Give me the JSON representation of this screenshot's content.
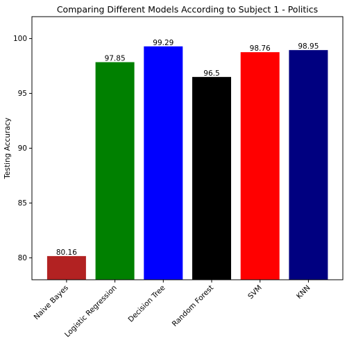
{
  "chart_data": {
    "type": "bar",
    "title": "Comparing Different Models According to Subject 1  - Politics",
    "xlabel": "",
    "ylabel": "Testing Accuracy",
    "ylim": [
      78,
      102
    ],
    "yticks": [
      80,
      85,
      90,
      95,
      100
    ],
    "ytick_labels": [
      "80",
      "85",
      "90",
      "95",
      "100"
    ],
    "grid": false,
    "categories": [
      "Naive Bayes",
      "Logistic Regression",
      "Decision Tree",
      "Random Forest",
      "SVM",
      "KNN"
    ],
    "values": [
      80.16,
      97.85,
      99.29,
      96.5,
      98.76,
      98.95
    ],
    "value_labels": [
      "80.16",
      "97.85",
      "99.29",
      "96.5",
      "98.76",
      "98.95"
    ],
    "colors": [
      "#b22222",
      "#008000",
      "#0000ff",
      "#000000",
      "#ff0000",
      "#000080"
    ]
  }
}
